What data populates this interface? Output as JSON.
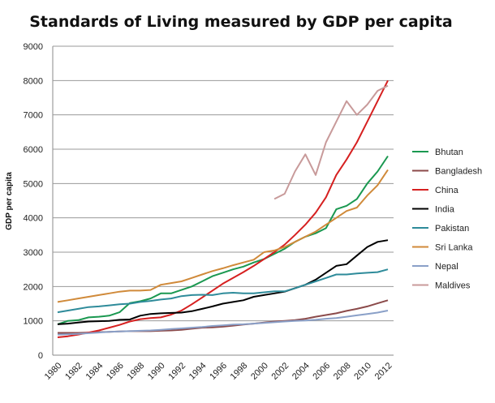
{
  "chart_data": {
    "type": "line",
    "title": "Standards of Living measured by GDP per capita",
    "xlabel": "",
    "ylabel": "GDP per capita",
    "ylim": [
      0,
      9000
    ],
    "yticks": [
      0,
      1000,
      2000,
      3000,
      4000,
      5000,
      6000,
      7000,
      8000,
      9000
    ],
    "xlim": [
      1980,
      2012
    ],
    "xticks": [
      1980,
      1982,
      1984,
      1986,
      1988,
      1990,
      1992,
      1994,
      1996,
      1998,
      2000,
      2002,
      2004,
      2006,
      2008,
      2010,
      2012
    ],
    "grid": "horizontal",
    "legend": "right",
    "x": [
      1980,
      1981,
      1982,
      1983,
      1984,
      1985,
      1986,
      1987,
      1988,
      1989,
      1990,
      1991,
      1992,
      1993,
      1994,
      1995,
      1996,
      1997,
      1998,
      1999,
      2000,
      2001,
      2002,
      2003,
      2004,
      2005,
      2006,
      2007,
      2008,
      2009,
      2010,
      2011,
      2012
    ],
    "series": [
      {
        "name": "Bhutan",
        "color": "#1a9850",
        "values": [
          900,
          1000,
          1020,
          1100,
          1120,
          1150,
          1250,
          1520,
          1570,
          1650,
          1800,
          1800,
          1900,
          2000,
          2150,
          2300,
          2400,
          2500,
          2580,
          2700,
          2800,
          2950,
          3100,
          3300,
          3450,
          3550,
          3700,
          4250,
          4350,
          4550,
          5000,
          5350,
          5800
        ]
      },
      {
        "name": "Bangladesh",
        "color": "#8b4a4a",
        "values": [
          650,
          650,
          650,
          660,
          670,
          680,
          690,
          700,
          700,
          700,
          710,
          720,
          740,
          770,
          800,
          810,
          830,
          860,
          890,
          920,
          950,
          980,
          1000,
          1020,
          1060,
          1120,
          1170,
          1220,
          1290,
          1350,
          1420,
          1510,
          1600
        ]
      },
      {
        "name": "China",
        "color": "#d62020",
        "values": [
          520,
          550,
          600,
          660,
          720,
          800,
          880,
          980,
          1050,
          1080,
          1100,
          1180,
          1300,
          1480,
          1680,
          1880,
          2080,
          2250,
          2420,
          2600,
          2800,
          3000,
          3220,
          3500,
          3800,
          4150,
          4600,
          5250,
          5700,
          6200,
          6800,
          7400,
          8000
        ]
      },
      {
        "name": "India",
        "color": "#000000",
        "values": [
          900,
          920,
          950,
          980,
          990,
          1000,
          1030,
          1040,
          1150,
          1200,
          1220,
          1230,
          1240,
          1280,
          1350,
          1420,
          1500,
          1550,
          1600,
          1700,
          1750,
          1800,
          1850,
          1950,
          2050,
          2200,
          2400,
          2600,
          2650,
          2900,
          3150,
          3300,
          3350
        ]
      },
      {
        "name": "Pakistan",
        "color": "#2e8b9a",
        "values": [
          1250,
          1300,
          1350,
          1400,
          1420,
          1450,
          1480,
          1500,
          1550,
          1580,
          1620,
          1650,
          1720,
          1750,
          1760,
          1750,
          1800,
          1820,
          1800,
          1800,
          1830,
          1860,
          1860,
          1950,
          2050,
          2150,
          2250,
          2350,
          2350,
          2380,
          2400,
          2420,
          2500
        ]
      },
      {
        "name": "Sri Lanka",
        "color": "#d08a3a",
        "values": [
          1550,
          1600,
          1650,
          1700,
          1750,
          1800,
          1850,
          1880,
          1880,
          1900,
          2050,
          2100,
          2150,
          2250,
          2350,
          2450,
          2530,
          2620,
          2700,
          2780,
          3000,
          3050,
          3150,
          3300,
          3450,
          3600,
          3800,
          4000,
          4200,
          4300,
          4650,
          4950,
          5400
        ]
      },
      {
        "name": "Nepal",
        "color": "#8aa0c8",
        "values": [
          600,
          610,
          620,
          640,
          660,
          680,
          690,
          700,
          710,
          720,
          740,
          760,
          780,
          800,
          820,
          850,
          870,
          890,
          900,
          920,
          940,
          960,
          980,
          1000,
          1010,
          1030,
          1060,
          1080,
          1120,
          1160,
          1200,
          1240,
          1300
        ]
      },
      {
        "name": "Maldives",
        "color": "#c89a9a",
        "values": [
          null,
          null,
          null,
          null,
          null,
          null,
          null,
          null,
          null,
          null,
          null,
          null,
          null,
          null,
          null,
          null,
          null,
          null,
          null,
          null,
          null,
          4550,
          4700,
          5350,
          5850,
          5250,
          6200,
          6800,
          7400,
          7000,
          7300,
          7700,
          7850
        ]
      }
    ]
  }
}
